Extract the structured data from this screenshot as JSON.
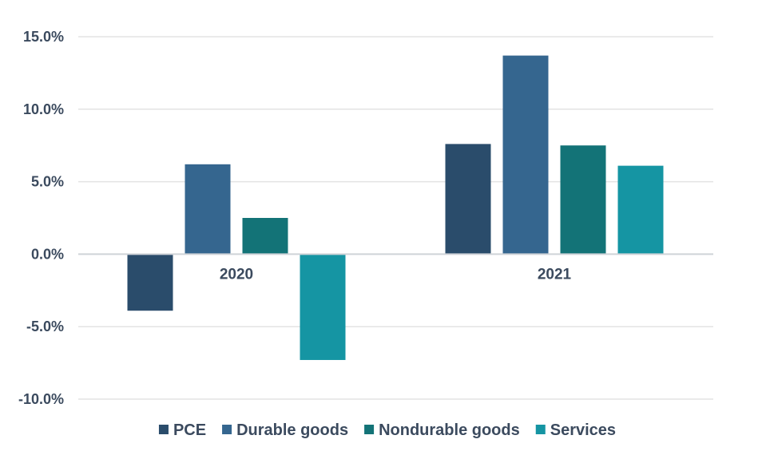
{
  "chart_data": {
    "type": "bar",
    "title": "",
    "xlabel": "",
    "ylabel": "",
    "categories": [
      "2020",
      "2021"
    ],
    "ylim": [
      -10,
      15
    ],
    "yticks": [
      15,
      10,
      5,
      0,
      -5,
      -10
    ],
    "ytick_labels": [
      "15.0%",
      "10.0%",
      "5.0%",
      "0.0%",
      "-5.0%",
      "-10.0%"
    ],
    "grid": true,
    "legend_position": "bottom",
    "series": [
      {
        "name": "PCE",
        "color": "#2a4c6b",
        "values": [
          -3.9,
          7.6
        ]
      },
      {
        "name": "Durable goods",
        "color": "#35668f",
        "values": [
          6.2,
          13.7
        ]
      },
      {
        "name": "Nondurable goods",
        "color": "#137377",
        "values": [
          2.5,
          7.5
        ]
      },
      {
        "name": "Services",
        "color": "#1595a3",
        "values": [
          -7.3,
          6.1
        ]
      }
    ]
  }
}
